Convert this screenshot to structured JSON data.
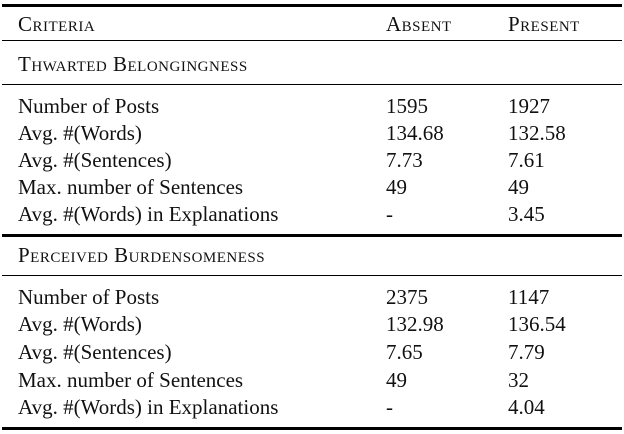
{
  "table": {
    "headers": [
      "Criteria",
      "Absent",
      "Present"
    ],
    "sections": [
      {
        "title": "Thwarted Belongingness",
        "rows": [
          [
            "Number of Posts",
            "1595",
            "1927"
          ],
          [
            "Avg. #(Words)",
            "134.68",
            "132.58"
          ],
          [
            "Avg. #(Sentences)",
            "7.73",
            "7.61"
          ],
          [
            "Max. number of Sentences",
            "49",
            "49"
          ],
          [
            "Avg. #(Words) in Explanations",
            "-",
            "3.45"
          ]
        ]
      },
      {
        "title": "Perceived Burdensomeness",
        "rows": [
          [
            "Number of Posts",
            "2375",
            "1147"
          ],
          [
            "Avg. #(Words)",
            "132.98",
            "136.54"
          ],
          [
            "Avg. #(Sentences)",
            "7.65",
            "7.79"
          ],
          [
            "Max. number of Sentences",
            "49",
            "32"
          ],
          [
            "Avg. #(Words) in Explanations",
            "-",
            "4.04"
          ]
        ]
      }
    ]
  }
}
